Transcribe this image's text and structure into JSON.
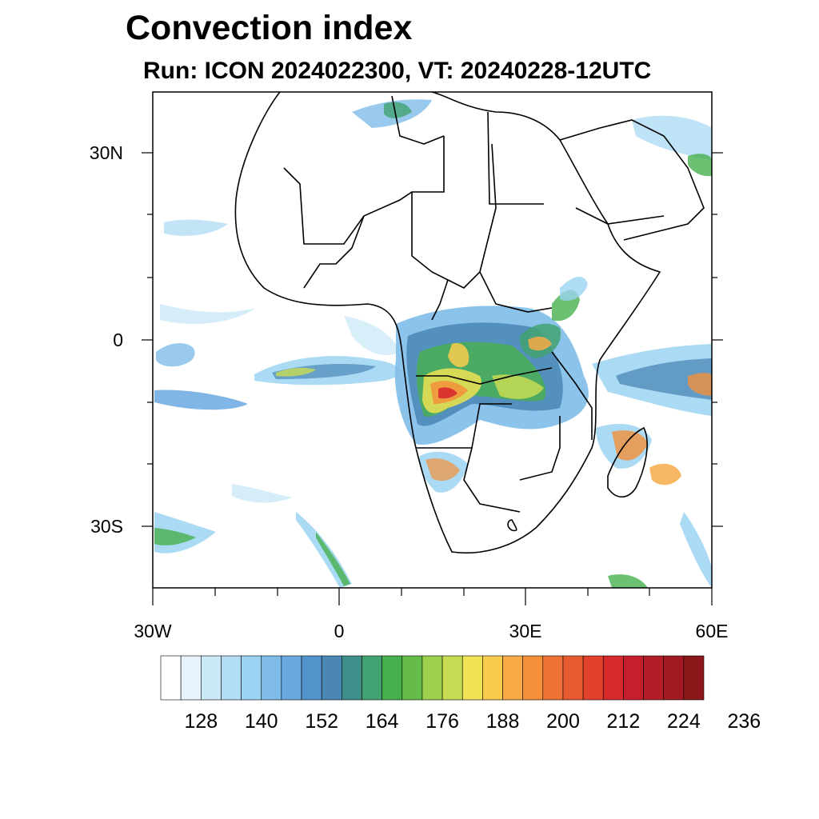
{
  "title": "Convection index",
  "subtitle": "Run: ICON 2024022300,  VT: 20240228-12UTC",
  "map": {
    "lat_labels": [
      "30N",
      "0",
      "30S"
    ],
    "lon_labels": [
      "30W",
      "0",
      "30E",
      "60E"
    ],
    "extent": {
      "lon_min": -30,
      "lon_max": 60,
      "lat_min": -40,
      "lat_max": 40
    },
    "colorbar": {
      "colors": [
        "#ffffff",
        "#e6f3fb",
        "#cbe8f7",
        "#b3ddf4",
        "#9bd3f2",
        "#7fbde8",
        "#6aa9e0",
        "#5494cc",
        "#4a87b5",
        "#3e8f8a",
        "#42a272",
        "#47b04e",
        "#66bc48",
        "#9ccf4e",
        "#c7dc52",
        "#efe254",
        "#f9cc4f",
        "#f7aa46",
        "#f39039",
        "#ee7235",
        "#e85a2f",
        "#e1412d",
        "#d72a2d",
        "#c51f2b",
        "#b31d27",
        "#a21a22",
        "#8c171b"
      ],
      "tick_labels": [
        "128",
        "140",
        "152",
        "164",
        "176",
        "188",
        "200",
        "212",
        "224",
        "236"
      ]
    }
  }
}
